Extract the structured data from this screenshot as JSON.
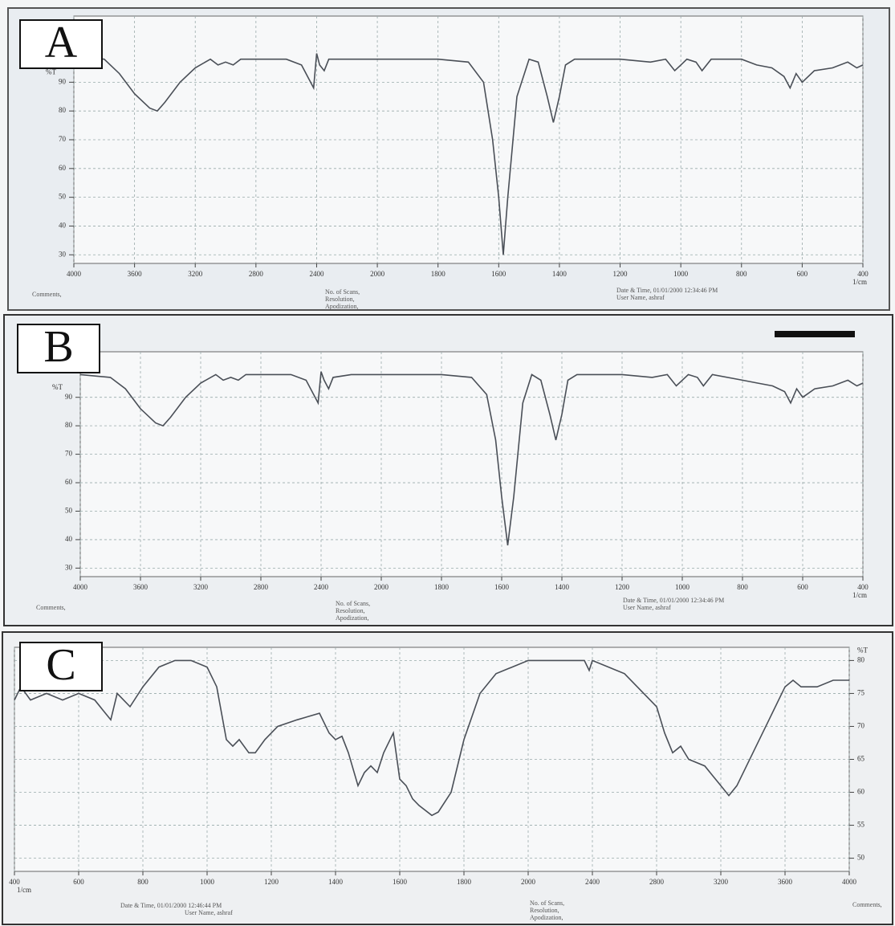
{
  "chart_data": [
    {
      "type": "line",
      "panel_label": "A",
      "y_label": "%T",
      "x_label": "1/cm",
      "y_axis": "left",
      "grid": true,
      "color": "#4a4f57",
      "notes": [
        "Comments,",
        "No. of Scans,",
        "Resolution,",
        "Apodization,",
        "Date & Time, 01/01/2000 12:34:46 PM",
        "User Name,   ashraf"
      ],
      "xlim": [
        4000,
        400
      ],
      "xticks": [
        4000,
        3600,
        3200,
        2800,
        2400,
        2000,
        1800,
        1600,
        1400,
        1200,
        1000,
        800,
        600,
        400
      ],
      "ylim": [
        27,
        113
      ],
      "yticks": [
        30,
        40,
        50,
        60,
        70,
        80,
        90
      ],
      "x": [
        4000,
        3800,
        3700,
        3600,
        3500,
        3450,
        3400,
        3300,
        3200,
        3100,
        3050,
        3000,
        2950,
        2900,
        2800,
        2600,
        2500,
        2420,
        2400,
        2380,
        2350,
        2320,
        2200,
        2000,
        1800,
        1700,
        1650,
        1620,
        1600,
        1585,
        1570,
        1540,
        1500,
        1470,
        1440,
        1420,
        1400,
        1380,
        1350,
        1300,
        1200,
        1100,
        1050,
        1020,
        1000,
        980,
        950,
        930,
        900,
        800,
        750,
        700,
        660,
        640,
        620,
        600,
        560,
        500,
        450,
        420,
        400
      ],
      "values": [
        99,
        98,
        93,
        86,
        81,
        80,
        83,
        90,
        95,
        98,
        96,
        97,
        96,
        98,
        98,
        98,
        96,
        88,
        100,
        96,
        94,
        98,
        98,
        98,
        98,
        97,
        90,
        70,
        50,
        30,
        50,
        85,
        98,
        97,
        85,
        76,
        85,
        96,
        98,
        98,
        98,
        97,
        98,
        94,
        96,
        98,
        97,
        94,
        98,
        98,
        96,
        95,
        92,
        88,
        93,
        90,
        94,
        95,
        97,
        95,
        96
      ]
    },
    {
      "type": "line",
      "panel_label": "B",
      "y_label": "%T",
      "x_label": "1/cm",
      "y_axis": "left",
      "grid": true,
      "color": "#4a4f57",
      "notes": [
        "Comments,",
        "No. of Scans,",
        "Resolution,",
        "Apodization,",
        "Date & Time, 01/01/2000 12:34:46 PM",
        "User Name,   ashraf"
      ],
      "xlim": [
        4000,
        400
      ],
      "xticks": [
        4000,
        3600,
        3200,
        2800,
        2400,
        2000,
        1800,
        1600,
        1400,
        1200,
        1000,
        800,
        600,
        400
      ],
      "ylim": [
        27,
        106
      ],
      "yticks": [
        30,
        40,
        50,
        60,
        70,
        80,
        90
      ],
      "x": [
        4000,
        3800,
        3700,
        3600,
        3500,
        3450,
        3400,
        3300,
        3200,
        3100,
        3050,
        3000,
        2950,
        2900,
        2800,
        2600,
        2500,
        2420,
        2400,
        2380,
        2350,
        2320,
        2200,
        2000,
        1800,
        1700,
        1650,
        1620,
        1600,
        1580,
        1560,
        1530,
        1500,
        1470,
        1440,
        1420,
        1400,
        1380,
        1350,
        1300,
        1200,
        1100,
        1050,
        1020,
        1000,
        980,
        950,
        930,
        900,
        800,
        750,
        700,
        660,
        640,
        620,
        600,
        560,
        500,
        450,
        420,
        400
      ],
      "values": [
        98,
        97,
        93,
        86,
        81,
        80,
        83,
        90,
        95,
        98,
        96,
        97,
        96,
        98,
        98,
        98,
        96,
        88,
        99,
        96,
        93,
        97,
        98,
        98,
        98,
        97,
        91,
        75,
        55,
        38,
        55,
        88,
        98,
        96,
        84,
        75,
        84,
        96,
        98,
        98,
        98,
        97,
        98,
        94,
        96,
        98,
        97,
        94,
        98,
        96,
        95,
        94,
        92,
        88,
        93,
        90,
        93,
        94,
        96,
        94,
        95
      ]
    },
    {
      "type": "line",
      "panel_label": "C",
      "y_label": "%T",
      "x_label": "1/cm",
      "y_axis": "right",
      "grid": true,
      "color": "#4a4f57",
      "notes": [
        "Date & Time, 01/01/2000 12:46:44 PM",
        "User Name,   ashraf",
        "No. of Scans,",
        "Resolution,",
        "Apodization,",
        "Comments,"
      ],
      "xlim": [
        400,
        4000
      ],
      "xticks": [
        400,
        600,
        800,
        1000,
        1200,
        1400,
        1600,
        1800,
        2000,
        2400,
        2800,
        3200,
        3600,
        4000
      ],
      "ylim": [
        48,
        82
      ],
      "yticks": [
        50,
        55,
        60,
        65,
        70,
        75,
        80
      ],
      "x": [
        400,
        420,
        450,
        500,
        550,
        600,
        650,
        700,
        720,
        760,
        800,
        850,
        900,
        950,
        1000,
        1030,
        1060,
        1080,
        1100,
        1130,
        1150,
        1180,
        1220,
        1280,
        1350,
        1380,
        1400,
        1420,
        1440,
        1470,
        1490,
        1510,
        1530,
        1550,
        1580,
        1600,
        1620,
        1640,
        1660,
        1700,
        1720,
        1760,
        1800,
        1850,
        1900,
        2000,
        2200,
        2350,
        2380,
        2400,
        2600,
        2800,
        2850,
        2900,
        2950,
        3000,
        3100,
        3200,
        3250,
        3300,
        3400,
        3500,
        3600,
        3650,
        3700,
        3800,
        3900,
        4000
      ],
      "values": [
        74,
        76,
        74,
        75,
        74,
        75,
        74,
        71,
        75,
        73,
        76,
        79,
        80,
        80,
        79,
        76,
        68,
        67,
        68,
        66,
        66,
        68,
        70,
        71,
        72,
        69,
        68,
        68.5,
        66,
        61,
        63,
        64,
        63,
        66,
        69,
        62,
        61,
        59,
        58,
        56.5,
        57,
        60,
        68,
        75,
        78,
        80,
        80,
        80,
        78.5,
        80,
        78,
        73,
        69,
        66,
        67,
        65,
        64,
        61,
        59.5,
        61,
        66,
        71,
        76,
        77,
        76,
        76,
        77,
        77
      ]
    }
  ]
}
